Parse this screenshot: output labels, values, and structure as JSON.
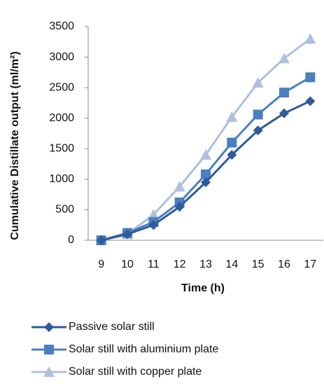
{
  "chart_data": {
    "type": "line",
    "y_label": "Cumulative Distillate output (ml/m²)",
    "x_label": "Time (h)",
    "categories": [
      "9",
      "10",
      "11",
      "12",
      "13",
      "14",
      "15",
      "16",
      "17"
    ],
    "series": [
      {
        "name": "Passive solar still",
        "color": "#2e5b9a",
        "marker": "diamond",
        "values": [
          0,
          100,
          250,
          550,
          950,
          1400,
          1800,
          2080,
          2280
        ]
      },
      {
        "name": "Solar still with aluminium plate",
        "color": "#4a7fc1",
        "marker": "square",
        "values": [
          0,
          120,
          300,
          620,
          1080,
          1600,
          2060,
          2420,
          2670
        ]
      },
      {
        "name": "Solar still with copper plate",
        "color": "#aebfdf",
        "marker": "triangle",
        "values": [
          0,
          100,
          420,
          880,
          1400,
          2020,
          2580,
          2980,
          3300
        ]
      }
    ],
    "ylim": [
      0,
      3500
    ],
    "yticks": [
      0,
      500,
      1000,
      1500,
      2000,
      2500,
      3000,
      3500
    ],
    "grid": false
  }
}
